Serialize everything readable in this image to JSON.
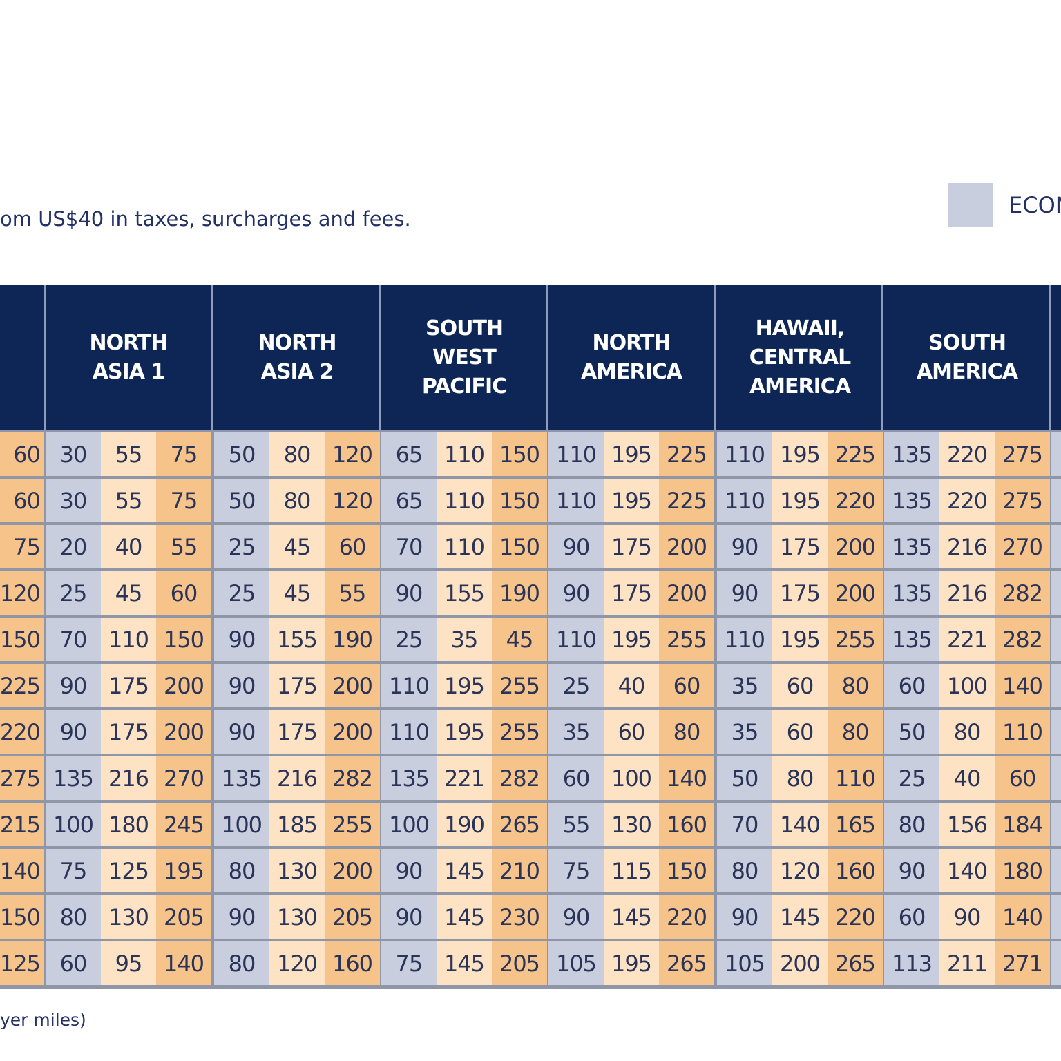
{
  "intro": "om US$40 in taxes, surcharges and fees.",
  "legend": {
    "label": "ECON"
  },
  "table": {
    "headers": [
      [
        "NORTH",
        "ASIA 1"
      ],
      [
        "NORTH",
        "ASIA 2"
      ],
      [
        "SOUTH",
        "WEST",
        "PACIFIC"
      ],
      [
        "NORTH",
        "AMERICA"
      ],
      [
        "HAWAII,",
        "CENTRAL",
        "AMERICA"
      ],
      [
        "SOUTH",
        "AMERICA"
      ]
    ],
    "rows": [
      [
        60,
        30,
        55,
        75,
        50,
        80,
        120,
        65,
        110,
        150,
        110,
        195,
        225,
        110,
        195,
        225,
        135,
        220,
        275
      ],
      [
        60,
        30,
        55,
        75,
        50,
        80,
        120,
        65,
        110,
        150,
        110,
        195,
        225,
        110,
        195,
        220,
        135,
        220,
        275
      ],
      [
        75,
        20,
        40,
        55,
        25,
        45,
        60,
        70,
        110,
        150,
        90,
        175,
        200,
        90,
        175,
        200,
        135,
        216,
        270
      ],
      [
        120,
        25,
        45,
        60,
        25,
        45,
        55,
        90,
        155,
        190,
        90,
        175,
        200,
        90,
        175,
        200,
        135,
        216,
        282
      ],
      [
        150,
        70,
        110,
        150,
        90,
        155,
        190,
        25,
        35,
        45,
        110,
        195,
        255,
        110,
        195,
        255,
        135,
        221,
        282
      ],
      [
        225,
        90,
        175,
        200,
        90,
        175,
        200,
        110,
        195,
        255,
        25,
        40,
        60,
        35,
        60,
        80,
        60,
        100,
        140
      ],
      [
        220,
        90,
        175,
        200,
        90,
        175,
        200,
        110,
        195,
        255,
        35,
        60,
        80,
        35,
        60,
        80,
        50,
        80,
        110
      ],
      [
        275,
        135,
        216,
        270,
        135,
        216,
        282,
        135,
        221,
        282,
        60,
        100,
        140,
        50,
        80,
        110,
        25,
        40,
        60
      ],
      [
        215,
        100,
        180,
        245,
        100,
        185,
        255,
        100,
        190,
        265,
        55,
        130,
        160,
        70,
        140,
        165,
        80,
        156,
        184
      ],
      [
        140,
        75,
        125,
        195,
        80,
        130,
        200,
        90,
        145,
        210,
        75,
        115,
        150,
        80,
        120,
        160,
        90,
        140,
        180
      ],
      [
        150,
        80,
        130,
        205,
        90,
        130,
        205,
        90,
        145,
        230,
        90,
        145,
        220,
        90,
        145,
        220,
        60,
        90,
        140
      ],
      [
        125,
        60,
        95,
        140,
        80,
        120,
        160,
        75,
        145,
        205,
        105,
        195,
        265,
        105,
        200,
        265,
        113,
        211,
        271
      ]
    ]
  },
  "footer": "yer miles)"
}
